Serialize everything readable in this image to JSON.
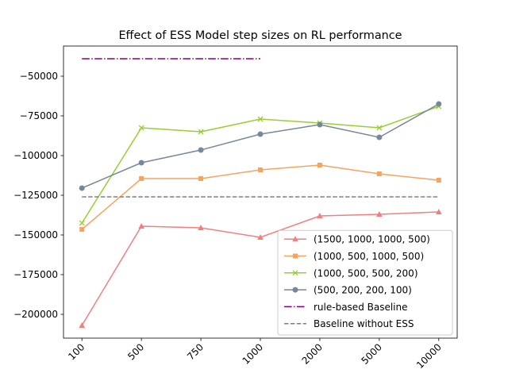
{
  "chart_data": {
    "type": "line",
    "title": "Effect of ESS Model step sizes on RL performance",
    "categories": [
      "100",
      "500",
      "750",
      "1000",
      "2000",
      "5000",
      "10000"
    ],
    "series": [
      {
        "name": "(1500, 1000, 1000, 500)",
        "color": "#f08080",
        "marker": "triangle",
        "linestyle": "solid",
        "values": [
          -207000,
          -144500,
          -145500,
          -151500,
          -138000,
          -137000,
          -135500
        ]
      },
      {
        "name": "(1000, 500, 1000, 500)",
        "color": "#f4a460",
        "marker": "square",
        "linestyle": "solid",
        "values": [
          -146500,
          -114500,
          -114500,
          -109000,
          -106000,
          -111500,
          -115500
        ]
      },
      {
        "name": "(1000, 500, 500, 200)",
        "color": "#9acd32",
        "marker": "x",
        "linestyle": "solid",
        "values": [
          -142500,
          -82500,
          -85000,
          -77000,
          -79500,
          -82500,
          -69000
        ]
      },
      {
        "name": "(500, 200, 200, 100)",
        "color": "#778899",
        "marker": "circle",
        "linestyle": "solid",
        "values": [
          -120500,
          -104500,
          -96500,
          -86500,
          -80500,
          -88500,
          -67500
        ]
      },
      {
        "name": "rule-based Baseline",
        "color": "#800080",
        "marker": "none",
        "linestyle": "dashdot",
        "values": [
          -39000,
          -39000,
          -39000,
          -39000,
          null,
          null,
          null
        ]
      },
      {
        "name": "Baseline without ESS",
        "color": "#808080",
        "marker": "none",
        "linestyle": "dashed",
        "values": [
          -126000,
          -126000,
          -126000,
          -126000,
          -126000,
          -126000,
          -126000
        ]
      }
    ],
    "ylim": [
      -215000,
      -31000
    ],
    "yticks": [
      {
        "value": -200000,
        "label": "−200000"
      },
      {
        "value": -175000,
        "label": "−175000"
      },
      {
        "value": -150000,
        "label": "−150000"
      },
      {
        "value": -125000,
        "label": "−125000"
      },
      {
        "value": -100000,
        "label": "−100000"
      },
      {
        "value": -75000,
        "label": "−75000"
      },
      {
        "value": -50000,
        "label": "−50000"
      }
    ],
    "grid": false,
    "legend": "lower right",
    "xtick_rotation": 45
  }
}
